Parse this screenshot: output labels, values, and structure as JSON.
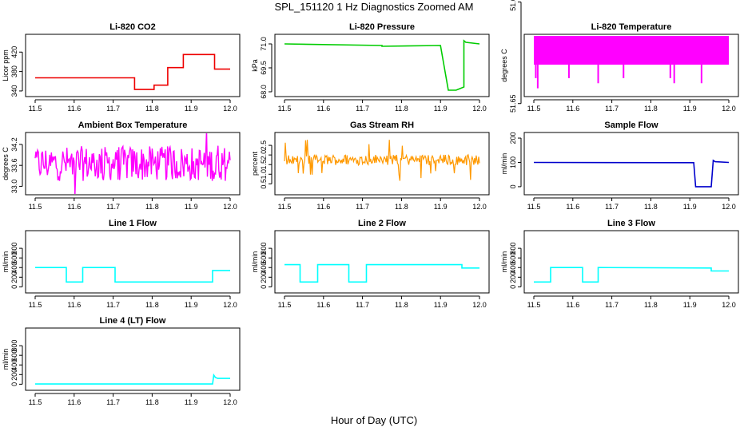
{
  "figure": {
    "title": "SPL_151120  1 Hz Diagnostics Zoomed AM",
    "xlabel": "Hour of Day (UTC)"
  },
  "chart_data": [
    {
      "type": "line",
      "title": "Li-820 CO2",
      "ylabel": "Licor ppm",
      "xlim": [
        11.5,
        12.0
      ],
      "ylim": [
        335,
        450
      ],
      "xticks": [
        "11.5",
        "11.6",
        "11.7",
        "11.8",
        "11.9",
        "12.0"
      ],
      "yticks": [
        "340",
        "380",
        "420"
      ],
      "color": "#ee0000",
      "series": [
        {
          "x": [
            11.5,
            11.755,
            11.755,
            11.805,
            11.805,
            11.84,
            11.84,
            11.88,
            11.88,
            11.96,
            11.96,
            12.0
          ],
          "y": [
            367,
            367,
            343,
            343,
            352,
            352,
            388,
            388,
            415,
            415,
            385,
            385
          ]
        }
      ]
    },
    {
      "type": "line",
      "title": "Li-820 Pressure",
      "ylabel": "kPa",
      "xlim": [
        11.5,
        12.0
      ],
      "ylim": [
        67.9,
        71.4
      ],
      "xticks": [
        "11.5",
        "11.6",
        "11.7",
        "11.8",
        "11.9",
        "12.0"
      ],
      "yticks": [
        "68.0",
        "69.5",
        "71.0"
      ],
      "color": "#00cc00",
      "series": [
        {
          "x": [
            11.5,
            11.75,
            11.75,
            11.9,
            11.92,
            11.925,
            11.94,
            11.95,
            11.96,
            11.96,
            11.965,
            12.0
          ],
          "y": [
            71.0,
            70.9,
            70.85,
            70.9,
            68.1,
            68.1,
            68.1,
            68.2,
            68.3,
            71.2,
            71.1,
            71.0
          ]
        }
      ]
    },
    {
      "type": "line",
      "title": "Li-820 Temperature",
      "ylabel": "degrees C",
      "xlim": [
        11.5,
        12.0
      ],
      "ylim": [
        51.648,
        51.637
      ],
      "xticks": [
        "11.5",
        "11.6",
        "11.7",
        "11.8",
        "11.9",
        "12.0"
      ],
      "yticks": [
        "51.65",
        "51.63"
      ],
      "color": "#ff00ff",
      "series": [
        {
          "x": [
            11.505,
            11.51,
            11.59,
            11.665,
            11.73,
            11.85,
            11.86,
            11.93
          ],
          "y": [
            51.645,
            51.647,
            51.645,
            51.646,
            51.645,
            51.645,
            51.646,
            51.646
          ]
        }
      ]
    },
    {
      "type": "line",
      "title": "Ambient Box Temperature",
      "ylabel": "degrees C",
      "xlim": [
        11.5,
        12.0
      ],
      "ylim": [
        32.85,
        34.45
      ],
      "xticks": [
        "11.5",
        "11.6",
        "11.7",
        "11.8",
        "11.9",
        "12.0"
      ],
      "yticks": [
        "33.0",
        "33.6",
        "34.2"
      ],
      "color": "#ff00ff",
      "series": [
        {
          "x": [
            11.5,
            12.0
          ],
          "y": [
            33.65,
            33.65
          ]
        }
      ]
    },
    {
      "type": "line",
      "title": "Gas Stream RH",
      "ylabel": "percent",
      "xlim": [
        11.5,
        12.0
      ],
      "ylim": [
        0.1,
        3.0
      ],
      "xticks": [
        "11.5",
        "11.6",
        "11.7",
        "11.8",
        "11.9",
        "12.0"
      ],
      "yticks": [
        "0.5",
        "1.0",
        "1.5",
        "2.0",
        "2.5"
      ],
      "color": "#ff9900",
      "series": [
        {
          "x": [
            11.5,
            12.0
          ],
          "y": [
            1.7,
            1.7
          ]
        }
      ]
    },
    {
      "type": "line",
      "title": "Sample Flow",
      "ylabel": "ml/min",
      "xlim": [
        11.5,
        12.0
      ],
      "ylim": [
        -20,
        210
      ],
      "xticks": [
        "11.5",
        "11.6",
        "11.7",
        "11.8",
        "11.9",
        "12.0"
      ],
      "yticks": [
        "0",
        "100",
        "200"
      ],
      "color": "#0000cc",
      "series": [
        {
          "x": [
            11.5,
            11.91,
            11.915,
            11.955,
            11.96,
            11.965,
            12.0
          ],
          "y": [
            100,
            99,
            0,
            0,
            108,
            103,
            100
          ]
        }
      ]
    },
    {
      "type": "line",
      "title": "Line 1 Flow",
      "ylabel": "ml/min",
      "xlim": [
        11.5,
        12.0
      ],
      "ylim": [
        -60,
        1100
      ],
      "xticks": [
        "11.5",
        "11.6",
        "11.7",
        "11.8",
        "11.9",
        "12.0"
      ],
      "yticks": [
        "0",
        "200",
        "400",
        "600",
        "800"
      ],
      "color": "#00ffff",
      "series": [
        {
          "x": [
            11.5,
            11.58,
            11.58,
            11.622,
            11.622,
            11.705,
            11.705,
            11.955,
            11.955,
            12.0
          ],
          "y": [
            400,
            400,
            100,
            100,
            400,
            400,
            100,
            100,
            340,
            340
          ]
        }
      ]
    },
    {
      "type": "line",
      "title": "Line 2 Flow",
      "ylabel": "ml/min",
      "xlim": [
        11.5,
        12.0
      ],
      "ylim": [
        -60,
        1100
      ],
      "xticks": [
        "11.5",
        "11.6",
        "11.7",
        "11.8",
        "11.9",
        "12.0"
      ],
      "yticks": [
        "0",
        "200",
        "400",
        "600",
        "800"
      ],
      "color": "#00ffff",
      "series": [
        {
          "x": [
            11.5,
            11.54,
            11.54,
            11.585,
            11.585,
            11.665,
            11.665,
            11.71,
            11.71,
            11.955,
            11.955,
            12.0
          ],
          "y": [
            460,
            460,
            100,
            100,
            460,
            460,
            100,
            100,
            460,
            460,
            390,
            390
          ]
        }
      ]
    },
    {
      "type": "line",
      "title": "Line 3 Flow",
      "ylabel": "ml/min",
      "xlim": [
        11.5,
        12.0
      ],
      "ylim": [
        -60,
        1100
      ],
      "xticks": [
        "11.5",
        "11.6",
        "11.7",
        "11.8",
        "11.9",
        "12.0"
      ],
      "yticks": [
        "0",
        "200",
        "400",
        "600",
        "800"
      ],
      "color": "#00ffff",
      "series": [
        {
          "x": [
            11.5,
            11.543,
            11.543,
            11.625,
            11.625,
            11.665,
            11.665,
            11.955,
            11.955,
            12.0
          ],
          "y": [
            100,
            100,
            400,
            400,
            100,
            100,
            400,
            390,
            330,
            330
          ]
        }
      ]
    },
    {
      "type": "line",
      "title": "Line 4 (LT) Flow",
      "ylabel": "ml/min",
      "xlim": [
        11.5,
        12.0
      ],
      "ylim": [
        -60,
        1100
      ],
      "xticks": [
        "11.5",
        "11.6",
        "11.7",
        "11.8",
        "11.9",
        "12.0"
      ],
      "yticks": [
        "0",
        "200",
        "400",
        "600",
        "800"
      ],
      "color": "#00ffff",
      "series": [
        {
          "x": [
            11.5,
            11.955,
            11.958,
            11.962,
            11.968,
            12.0
          ],
          "y": [
            5,
            5,
            190,
            140,
            120,
            120
          ]
        }
      ]
    }
  ]
}
